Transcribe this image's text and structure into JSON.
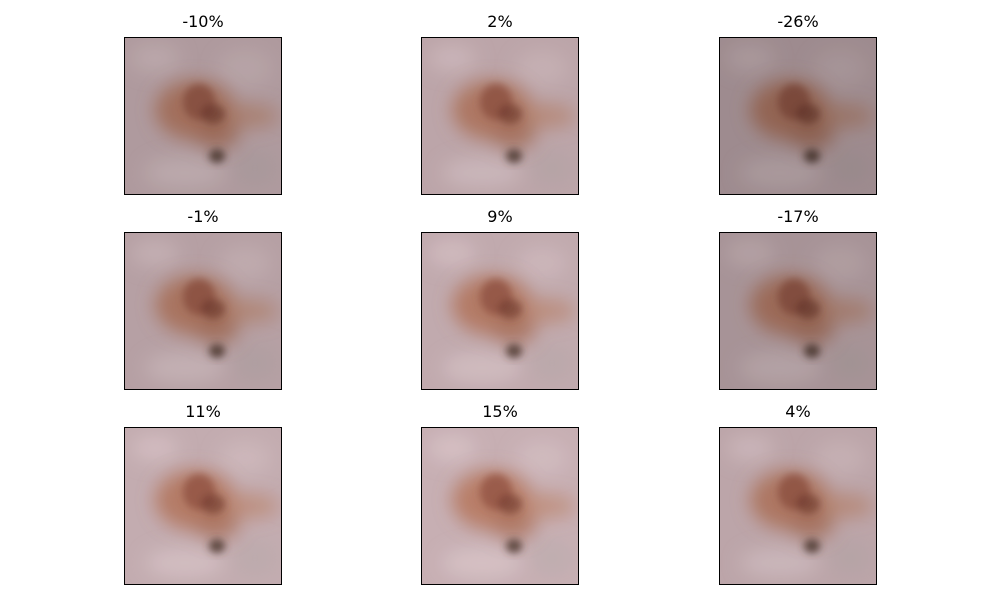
{
  "panels": [
    {
      "label": "-10%",
      "brightness": 0.95
    },
    {
      "label": "2%",
      "brightness": 1.02
    },
    {
      "label": "-26%",
      "brightness": 0.86
    },
    {
      "label": "-1%",
      "brightness": 0.99
    },
    {
      "label": "9%",
      "brightness": 1.05
    },
    {
      "label": "-17%",
      "brightness": 0.91
    },
    {
      "label": "11%",
      "brightness": 1.06
    },
    {
      "label": "15%",
      "brightness": 1.08
    },
    {
      "label": "4%",
      "brightness": 1.02
    }
  ],
  "colors": {
    "skin": "#b8a2a6",
    "lesion": "#8a5040",
    "lesion_dark": "#6e3a30",
    "spot": "#4a3530",
    "frame": "#000000"
  }
}
